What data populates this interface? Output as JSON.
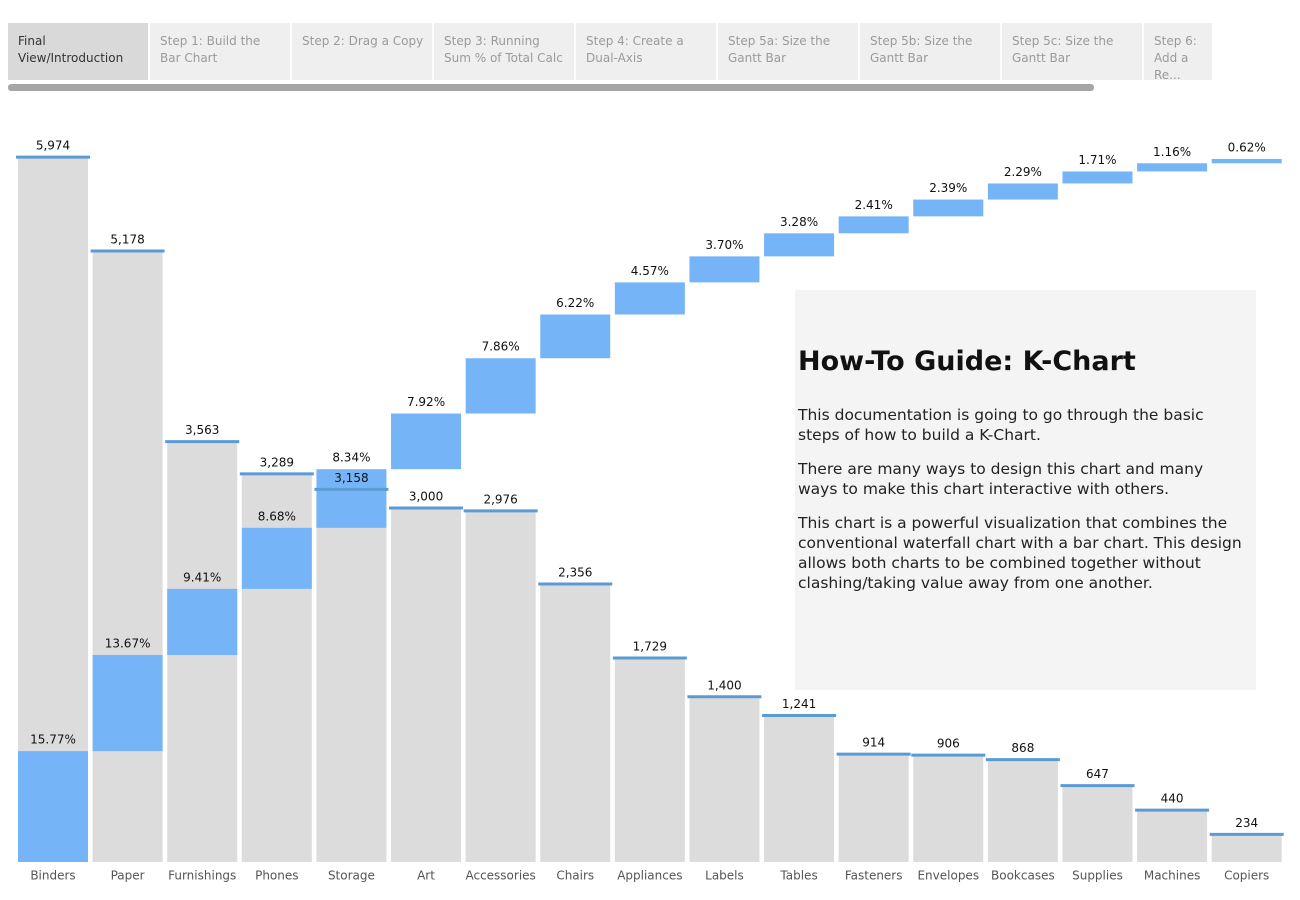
{
  "tabs": [
    "Final View/Introduction",
    "Step 1: Build the Bar Chart",
    "Step 2: Drag a Copy",
    "Step 3: Running Sum % of Total Calc",
    "Step 4: Create a Dual-Axis",
    "Step 5a: Size the Gantt Bar",
    "Step 5b: Size the Gantt Bar",
    "Step 5c: Size the Gantt Bar",
    "Step 6: Add a Re..."
  ],
  "guide": {
    "title": "How-To Guide: K-Chart",
    "paragraphs": [
      "This documentation is going to go through the basic steps of how to build a K-Chart.",
      "There are many ways to design this chart and many ways to make this chart interactive with others.",
      "This chart is a powerful visualization that combines the conventional waterfall chart with a bar chart. This design allows both charts to be combined together without clashing/taking value away from one another."
    ]
  },
  "chart_data": {
    "type": "k-chart",
    "categories": [
      "Binders",
      "Paper",
      "Furnishings",
      "Phones",
      "Storage",
      "Art",
      "Accessories",
      "Chairs",
      "Appliances",
      "Labels",
      "Tables",
      "Fasteners",
      "Envelopes",
      "Bookcases",
      "Supplies",
      "Machines",
      "Copiers"
    ],
    "series": [
      {
        "color": "#dcdcdc",
        "accent_color": "#5b9bd5",
        "values": [
          5974,
          5178,
          3563,
          3289,
          3158,
          3000,
          2976,
          2356,
          1729,
          1400,
          1241,
          914,
          906,
          868,
          647,
          440,
          234
        ],
        "value_labels": [
          "5,974",
          "5,178",
          "3,563",
          "3,289",
          "3,158",
          "3,000",
          "2,976",
          "2,356",
          "1,729",
          "1,400",
          "1,241",
          "914",
          "906",
          "868",
          "647",
          "440",
          "234"
        ]
      },
      {
        "color": "#75b5f7",
        "axis": "y2",
        "values": [
          15.77,
          13.67,
          9.41,
          8.68,
          8.34,
          7.92,
          7.86,
          6.22,
          4.57,
          3.7,
          3.28,
          2.41,
          2.39,
          2.29,
          1.71,
          1.16,
          0.62
        ],
        "value_labels": [
          "15.77%",
          "13.67%",
          "9.41%",
          "8.68%",
          "8.34%",
          "7.92%",
          "7.86%",
          "6.22%",
          "4.57%",
          "3.70%",
          "3.28%",
          "2.41%",
          "2.39%",
          "2.29%",
          "1.71%",
          "1.16%",
          "0.62%"
        ]
      }
    ],
    "ylim": [
      0,
      6000
    ],
    "y2lim": [
      0,
      100.7
    ]
  }
}
